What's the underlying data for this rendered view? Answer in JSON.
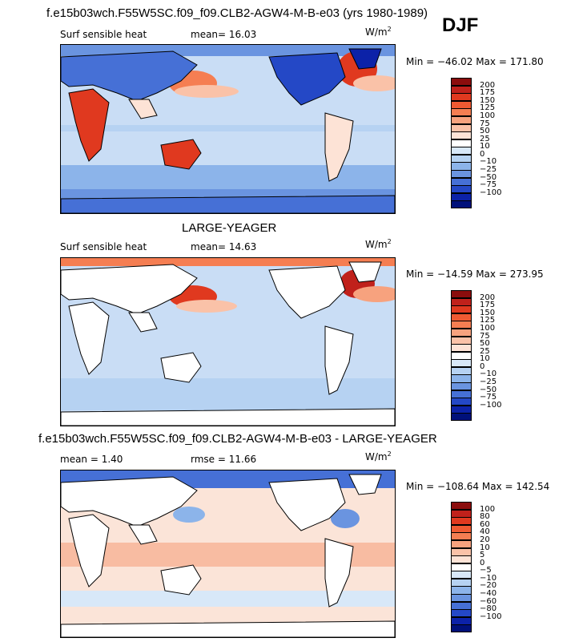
{
  "season": "DJF",
  "panels": [
    {
      "title": "f.e15b03wch.F55W5SC.f09_f09.CLB2-AGW4-M-B-e03 (yrs 1980-1989)",
      "left_label": "Surf sensible heat",
      "center_label": "mean=  16.03",
      "unit_base": "W/m",
      "unit_exp": "2",
      "minmax": "Min = −46.02  Max = 171.80",
      "colorbar_labels": [
        "200",
        "175",
        "150",
        "125",
        "100",
        "75",
        "50",
        "25",
        "10",
        "0",
        "−10",
        "−25",
        "−50",
        "−75",
        "−100"
      ],
      "colorbar_colors": [
        "#8b0d0d",
        "#c0211b",
        "#e0391f",
        "#ef5a32",
        "#f57e52",
        "#f7a27e",
        "#fac2a8",
        "#fde3d6",
        "#ffffff",
        "#d8e8f8",
        "#b6d2f2",
        "#8cb4ea",
        "#6a94e0",
        "#4670d6",
        "#2448c6",
        "#0c22a8",
        "#00107a"
      ],
      "ocean_base": "#c9ddf5"
    },
    {
      "title": "LARGE-YEAGER",
      "left_label": "Surf sensible heat",
      "center_label": "mean=  14.63",
      "unit_base": "W/m",
      "unit_exp": "2",
      "minmax": "Min = −14.59  Max = 273.95",
      "colorbar_labels": [
        "200",
        "175",
        "150",
        "125",
        "100",
        "75",
        "50",
        "25",
        "10",
        "0",
        "−10",
        "−25",
        "−50",
        "−75",
        "−100"
      ],
      "colorbar_colors": [
        "#8b0d0d",
        "#c0211b",
        "#e0391f",
        "#ef5a32",
        "#f57e52",
        "#f7a27e",
        "#fac2a8",
        "#fde3d6",
        "#ffffff",
        "#d8e8f8",
        "#b6d2f2",
        "#8cb4ea",
        "#6a94e0",
        "#4670d6",
        "#2448c6",
        "#0c22a8",
        "#00107a"
      ],
      "ocean_base": "#c9ddf5"
    },
    {
      "title": "f.e15b03wch.F55W5SC.f09_f09.CLB2-AGW4-M-B-e03 - LARGE-YEAGER",
      "left_label": "mean =    1.40",
      "center_label": "rmse =   11.66",
      "unit_base": "W/m",
      "unit_exp": "2",
      "minmax": "Min = −108.64  Max = 142.54",
      "colorbar_labels": [
        "100",
        "80",
        "60",
        "40",
        "20",
        "10",
        "5",
        "0",
        "−5",
        "−10",
        "−20",
        "−40",
        "−60",
        "−80",
        "−100"
      ],
      "colorbar_colors": [
        "#8b0d0d",
        "#c0211b",
        "#e0391f",
        "#ef5a32",
        "#f57e52",
        "#f7a27e",
        "#fac2a8",
        "#fde3d6",
        "#ffffff",
        "#d8e8f8",
        "#b6d2f2",
        "#8cb4ea",
        "#6a94e0",
        "#4670d6",
        "#2448c6",
        "#0c22a8",
        "#00107a"
      ],
      "ocean_base": "#fbe4d8"
    }
  ],
  "chart_data": [
    {
      "type": "heatmap",
      "title": "f.e15b03wch.F55W5SC.f09_f09.CLB2-AGW4-M-B-e03 (yrs 1980-1989)",
      "variable": "Surf sensible heat",
      "units": "W/m2",
      "mean": 16.03,
      "min": -46.02,
      "max": 171.8,
      "levels": [
        -100,
        -75,
        -50,
        -25,
        -10,
        0,
        10,
        25,
        50,
        75,
        100,
        125,
        150,
        175,
        200
      ]
    },
    {
      "type": "heatmap",
      "title": "LARGE-YEAGER",
      "variable": "Surf sensible heat",
      "units": "W/m2",
      "mean": 14.63,
      "min": -14.59,
      "max": 273.95,
      "levels": [
        -100,
        -75,
        -50,
        -25,
        -10,
        0,
        10,
        25,
        50,
        75,
        100,
        125,
        150,
        175,
        200
      ]
    },
    {
      "type": "heatmap",
      "title": "f.e15b03wch.F55W5SC.f09_f09.CLB2-AGW4-M-B-e03 - LARGE-YEAGER",
      "units": "W/m2",
      "mean": 1.4,
      "rmse": 11.66,
      "min": -108.64,
      "max": 142.54,
      "levels": [
        -100,
        -80,
        -60,
        -40,
        -20,
        -10,
        -5,
        0,
        5,
        10,
        20,
        40,
        60,
        80,
        100
      ]
    }
  ]
}
